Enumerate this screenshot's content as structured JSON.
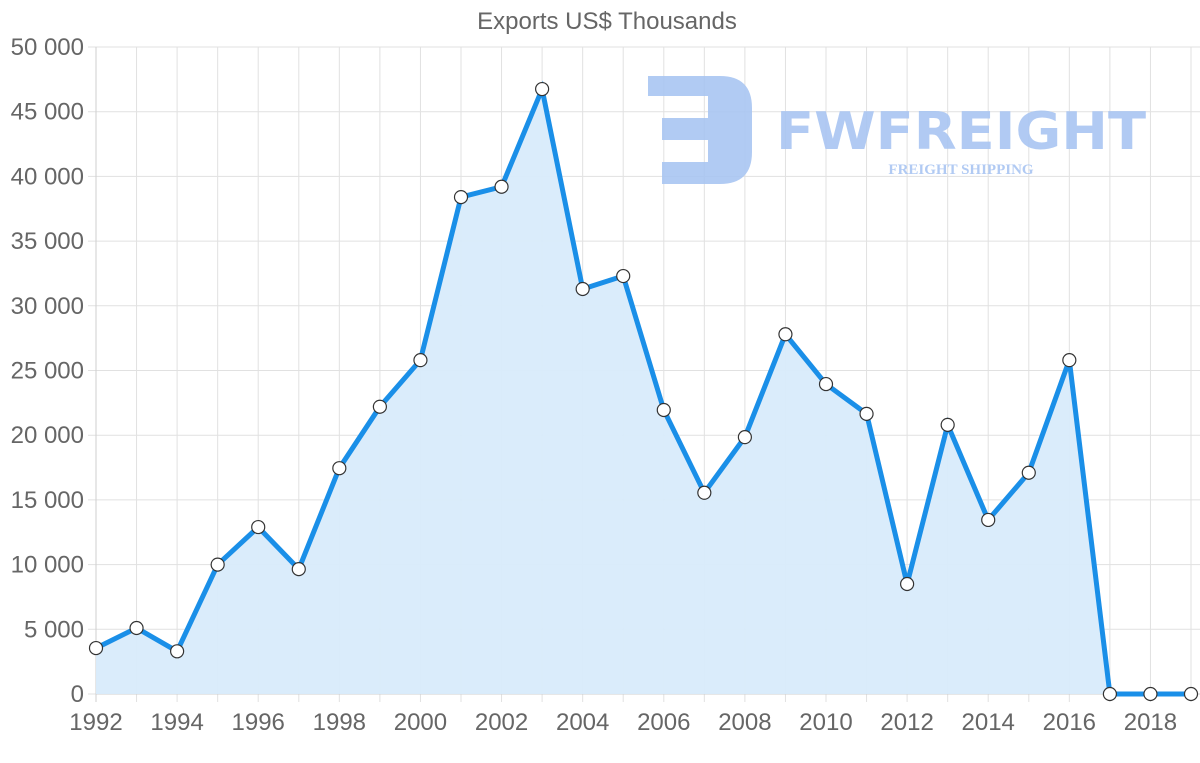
{
  "chart_data": {
    "type": "area",
    "title": "Exports US$ Thousands",
    "xlabel": "",
    "ylabel": "",
    "x": [
      1992,
      1993,
      1994,
      1995,
      1996,
      1997,
      1998,
      1999,
      2000,
      2001,
      2002,
      2003,
      2004,
      2005,
      2006,
      2007,
      2008,
      2009,
      2010,
      2011,
      2012,
      2013,
      2014,
      2015,
      2016,
      2017,
      2018,
      2019
    ],
    "series": [
      {
        "name": "Exports US$ Thousands",
        "values": [
          3550,
          5100,
          3300,
          10000,
          12900,
          9650,
          17450,
          22200,
          25800,
          38400,
          39200,
          46750,
          31300,
          32300,
          21950,
          15550,
          19850,
          27800,
          23950,
          21650,
          8500,
          20800,
          13450,
          17100,
          25800,
          0,
          0,
          0
        ]
      }
    ],
    "ylim": [
      0,
      50000
    ],
    "y_ticks": [
      "0",
      "5 000",
      "10 000",
      "15 000",
      "20 000",
      "25 000",
      "30 000",
      "35 000",
      "40 000",
      "45 000",
      "50 000"
    ],
    "x_tick_labels": [
      "1992",
      "1994",
      "1996",
      "1998",
      "2000",
      "2002",
      "2004",
      "2006",
      "2008",
      "2010",
      "2012",
      "2014",
      "2016",
      "2018"
    ],
    "grid": true,
    "legend": "none",
    "line_color": "#1a8fe8",
    "fill_color": "#d8ebfb",
    "marker_fill": "#ffffff",
    "marker_stroke": "#333333"
  },
  "watermark": {
    "brand": "FWFREIGHT",
    "tagline": "FREIGHT SHIPPING",
    "color": "#a9c5f2"
  }
}
